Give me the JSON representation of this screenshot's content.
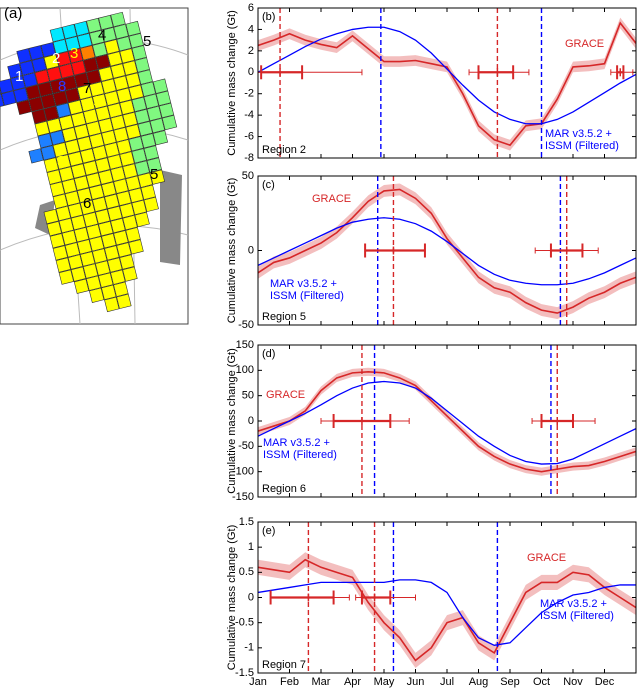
{
  "panel_label": "(a)",
  "map_labels": [
    "1",
    "2",
    "3",
    "4",
    "5",
    "8",
    "7",
    "9",
    "3",
    "5",
    "6"
  ],
  "chart_data": [
    {
      "type": "line",
      "panel_label": "(b)",
      "region": "Region 2",
      "ylabel": "Cumulative mass change (Gt)",
      "xlim": [
        0,
        12
      ],
      "xticks": [
        0,
        1,
        2,
        3,
        4,
        5,
        6,
        7,
        8,
        9,
        10,
        11
      ],
      "ylim": [
        -8,
        6
      ],
      "yticks": [
        -8,
        -6,
        -4,
        -2,
        0,
        2,
        4,
        6
      ],
      "x": [
        0,
        0.5,
        1,
        1.5,
        2,
        2.5,
        3,
        3.5,
        4,
        4.5,
        5,
        5.5,
        6,
        6.5,
        7,
        7.5,
        8,
        8.5,
        9,
        9.5,
        10,
        10.5,
        11,
        11.5,
        12
      ],
      "series": [
        {
          "name": "GRACE",
          "color": "#d62728",
          "uncertainty": 0.5,
          "values": [
            2.5,
            3.0,
            3.6,
            3.0,
            2.6,
            2.3,
            3.4,
            2.2,
            1.0,
            1.0,
            1.1,
            0.8,
            0.5,
            -2.0,
            -5.0,
            -6.3,
            -6.8,
            -5.0,
            -4.8,
            -2.5,
            0.5,
            0.6,
            0.8,
            4.6,
            2.7
          ]
        },
        {
          "name": "MAR v3.5.2 + ISSM (Filtered)",
          "color": "#0000ff",
          "values": [
            0,
            0.8,
            1.6,
            2.4,
            3.1,
            3.6,
            4.0,
            4.2,
            4.2,
            3.8,
            3.0,
            1.8,
            0.3,
            -1.2,
            -2.6,
            -3.7,
            -4.4,
            -4.8,
            -4.8,
            -4.4,
            -3.7,
            -2.8,
            -1.9,
            -1.0,
            -0.2
          ]
        }
      ],
      "vlines": [
        {
          "x": 0.7,
          "color": "#d62728"
        },
        {
          "x": 7.6,
          "color": "#d62728"
        },
        {
          "x": 3.9,
          "color": "#0000ff"
        },
        {
          "x": 9.0,
          "color": "#0000ff"
        }
      ],
      "error_bars": [
        {
          "x": 0.7,
          "y": 0,
          "inner": [
            0.1,
            1.4
          ],
          "outer": [
            0,
            3.3
          ]
        },
        {
          "x": 7.6,
          "y": 0,
          "inner": [
            7.0,
            8.1
          ],
          "outer": [
            6.7,
            8.6
          ]
        },
        {
          "x": 11.5,
          "y": 0,
          "inner": [
            11.4,
            11.6
          ],
          "outer": [
            11.2,
            11.9
          ]
        }
      ]
    },
    {
      "type": "line",
      "panel_label": "(c)",
      "region": "Region 5",
      "ylabel": "Cumulative mass change (Gt)",
      "xlim": [
        0,
        12
      ],
      "xticks": [
        0,
        1,
        2,
        3,
        4,
        5,
        6,
        7,
        8,
        9,
        10,
        11
      ],
      "ylim": [
        -50,
        50
      ],
      "yticks": [
        -50,
        0,
        50
      ],
      "x": [
        0,
        0.5,
        1,
        1.5,
        2,
        2.5,
        3,
        3.5,
        4,
        4.5,
        5,
        5.5,
        6,
        6.5,
        7,
        7.5,
        8,
        8.5,
        9,
        9.5,
        10,
        10.5,
        11,
        11.5,
        12
      ],
      "series": [
        {
          "name": "GRACE",
          "color": "#d62728",
          "uncertainty": 4,
          "values": [
            -15,
            -8,
            -5,
            0,
            5,
            12,
            22,
            33,
            40,
            41,
            35,
            25,
            8,
            -5,
            -18,
            -25,
            -28,
            -35,
            -40,
            -42,
            -38,
            -32,
            -28,
            -22,
            -18
          ]
        },
        {
          "name": "MAR v3.5.2 + ISSM (Filtered)",
          "color": "#0000ff",
          "values": [
            -10,
            -5,
            0,
            5,
            10,
            15,
            19,
            21,
            22,
            21,
            18,
            13,
            6,
            -2,
            -10,
            -16,
            -20,
            -22,
            -23,
            -23,
            -22,
            -19,
            -15,
            -10,
            -5
          ]
        }
      ],
      "vlines": [
        {
          "x": 4.3,
          "color": "#d62728"
        },
        {
          "x": 9.8,
          "color": "#d62728"
        },
        {
          "x": 3.8,
          "color": "#0000ff"
        },
        {
          "x": 9.6,
          "color": "#0000ff"
        }
      ],
      "error_bars": [
        {
          "x": 4.3,
          "y": 0,
          "inner": [
            3.4,
            5.3
          ],
          "outer": [
            3.4,
            5.3
          ]
        },
        {
          "x": 9.8,
          "y": 0,
          "inner": [
            9.3,
            10.3
          ],
          "outer": [
            8.8,
            10.8
          ]
        }
      ]
    },
    {
      "type": "line",
      "panel_label": "(d)",
      "region": "Region 6",
      "ylabel": "Cumulative mass change (Gt)",
      "xlim": [
        0,
        12
      ],
      "xticks": [
        0,
        1,
        2,
        3,
        4,
        5,
        6,
        7,
        8,
        9,
        10,
        11
      ],
      "ylim": [
        -150,
        150
      ],
      "yticks": [
        -150,
        -100,
        -50,
        0,
        50,
        100,
        150
      ],
      "x": [
        0,
        0.5,
        1,
        1.5,
        2,
        2.5,
        3,
        3.5,
        4,
        4.5,
        5,
        5.5,
        6,
        6.5,
        7,
        7.5,
        8,
        8.5,
        9,
        9.5,
        10,
        10.5,
        11,
        11.5,
        12
      ],
      "series": [
        {
          "name": "GRACE",
          "color": "#d62728",
          "uncertainty": 8,
          "values": [
            -20,
            -10,
            0,
            20,
            60,
            85,
            95,
            97,
            95,
            85,
            70,
            40,
            10,
            -20,
            -50,
            -70,
            -85,
            -95,
            -100,
            -95,
            -90,
            -88,
            -80,
            -70,
            -60
          ]
        },
        {
          "name": "MAR v3.5.2 + ISSM (Filtered)",
          "color": "#0000ff",
          "values": [
            -30,
            -15,
            0,
            15,
            32,
            50,
            65,
            75,
            78,
            75,
            65,
            45,
            20,
            -5,
            -30,
            -50,
            -68,
            -80,
            -85,
            -84,
            -75,
            -60,
            -45,
            -30,
            -15
          ]
        }
      ],
      "vlines": [
        {
          "x": 3.3,
          "color": "#d62728"
        },
        {
          "x": 9.5,
          "color": "#d62728"
        },
        {
          "x": 3.7,
          "color": "#0000ff"
        },
        {
          "x": 9.3,
          "color": "#0000ff"
        }
      ],
      "error_bars": [
        {
          "x": 3.3,
          "y": 0,
          "inner": [
            2.4,
            4.2
          ],
          "outer": [
            2.0,
            4.8
          ]
        },
        {
          "x": 9.5,
          "y": 0,
          "inner": [
            9.0,
            10.0
          ],
          "outer": [
            8.7,
            10.7
          ]
        }
      ]
    },
    {
      "type": "line",
      "panel_label": "(e)",
      "region": "Region 7",
      "ylabel": "Cumulative mass change (Gt)",
      "xlim": [
        0,
        12
      ],
      "xticks": [
        {
          "value": 0,
          "label": "Jan"
        },
        {
          "value": 1,
          "label": "Feb"
        },
        {
          "value": 2,
          "label": "Mar"
        },
        {
          "value": 3,
          "label": "Apr"
        },
        {
          "value": 4,
          "label": "May"
        },
        {
          "value": 5,
          "label": "Jun"
        },
        {
          "value": 6,
          "label": "Jul"
        },
        {
          "value": 7,
          "label": "Aug"
        },
        {
          "value": 8,
          "label": "Sep"
        },
        {
          "value": 9,
          "label": "Oct"
        },
        {
          "value": 10,
          "label": "Nov"
        },
        {
          "value": 11,
          "label": "Dec"
        }
      ],
      "ylim": [
        -1.5,
        1.5
      ],
      "yticks": [
        -1.5,
        -1,
        -0.5,
        0,
        0.5,
        1,
        1.5
      ],
      "x": [
        0,
        0.5,
        1,
        1.5,
        2,
        2.5,
        3,
        3.5,
        4,
        4.5,
        5,
        5.5,
        6,
        6.5,
        7,
        7.5,
        8,
        8.5,
        9,
        9.5,
        10,
        10.5,
        11,
        11.5,
        12
      ],
      "series": [
        {
          "name": "GRACE",
          "color": "#d62728",
          "uncertainty": 0.15,
          "values": [
            0.6,
            0.55,
            0.5,
            0.75,
            0.6,
            0.5,
            0.4,
            -0.1,
            -0.5,
            -0.8,
            -1.25,
            -1.0,
            -0.5,
            -0.4,
            -0.9,
            -1.1,
            -0.5,
            0.1,
            0.3,
            0.3,
            0.5,
            0.45,
            0.2,
            0,
            -0.2
          ]
        },
        {
          "name": "MAR v3.5.2 + ISSM (Filtered)",
          "color": "#0000ff",
          "values": [
            0.1,
            0.15,
            0.2,
            0.25,
            0.3,
            0.3,
            0.3,
            0.3,
            0.3,
            0.35,
            0.35,
            0.3,
            0.1,
            -0.4,
            -0.8,
            -0.95,
            -0.9,
            -0.6,
            -0.3,
            -0.1,
            0.05,
            0.1,
            0.2,
            0.25,
            0.25
          ]
        }
      ],
      "vlines": [
        {
          "x": 1.6,
          "color": "#d62728"
        },
        {
          "x": 3.7,
          "color": "#d62728"
        },
        {
          "x": 4.3,
          "color": "#0000ff"
        },
        {
          "x": 7.6,
          "color": "#0000ff"
        }
      ],
      "error_bars": [
        {
          "x": 1.6,
          "y": 0,
          "inner": [
            0.4,
            2.4
          ],
          "outer": [
            0.4,
            2.9
          ]
        },
        {
          "x": 3.7,
          "y": 0,
          "inner": [
            3.3,
            4.2
          ],
          "outer": [
            3.1,
            5.0
          ]
        }
      ]
    }
  ]
}
